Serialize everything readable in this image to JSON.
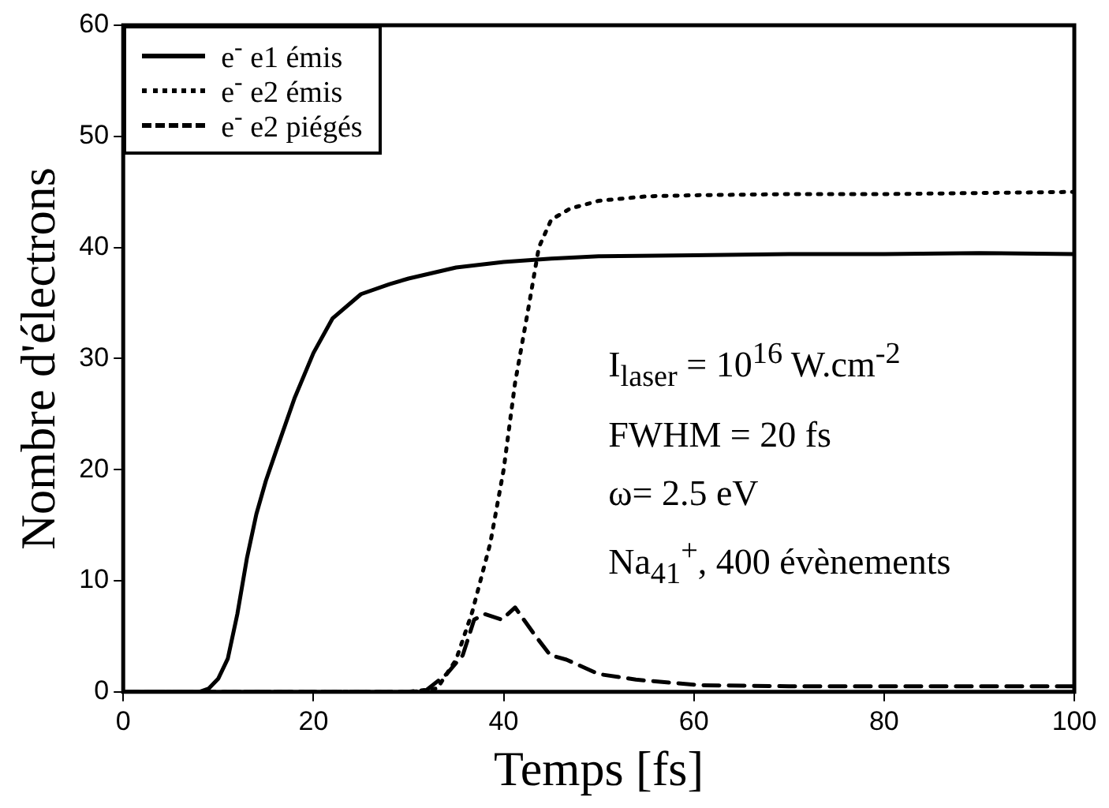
{
  "chart_data": {
    "type": "line",
    "xlabel": "Temps [fs]",
    "ylabel": "Nombre d'électrons",
    "xlim": [
      0,
      100
    ],
    "xticks": [
      0,
      20,
      40,
      60,
      80,
      100
    ],
    "ylim": [
      0,
      60
    ],
    "yticks": [
      0,
      10,
      20,
      30,
      40,
      50,
      60
    ],
    "grid": false,
    "legend": "top left",
    "marker": "none",
    "annotations": [
      "I$_{laser}$ = 10$^{16}$ W.cm$^{-2}$",
      "FWHM = 20 fs",
      "ω= 2.5 eV",
      "Na$_{41}$$^{+}$, 400 évènements"
    ],
    "series": [
      {
        "name": "e$^{-}$ e1 émis",
        "color": "#000000",
        "line_style": "solid",
        "x": [
          0,
          8,
          9,
          10,
          11,
          12,
          13,
          14,
          15,
          16,
          18,
          20,
          22,
          25,
          28,
          30,
          35,
          40,
          45,
          50,
          60,
          70,
          80,
          90,
          100
        ],
        "values": [
          0,
          0,
          0.3,
          1.2,
          3,
          7,
          12,
          16,
          19,
          21.5,
          26.4,
          30.5,
          33.6,
          35.8,
          36.7,
          37.2,
          38.2,
          38.7,
          39,
          39.2,
          39.3,
          39.4,
          39.4,
          39.5,
          39.4
        ]
      },
      {
        "name": "e$^{-}$ e2 émis",
        "color": "#000000",
        "line_style": "dotted",
        "x": [
          0,
          30,
          33,
          35,
          36.7,
          38.6,
          40,
          41.2,
          42.7,
          43.7,
          45,
          47,
          50,
          55,
          60,
          70,
          80,
          100
        ],
        "values": [
          0,
          0,
          0.3,
          2.9,
          7.2,
          13.4,
          20,
          27.8,
          35,
          40,
          42.5,
          43.5,
          44.2,
          44.6,
          44.7,
          44.8,
          44.8,
          45
        ]
      },
      {
        "name": "e$^{-}$ e2 piégés",
        "color": "#000000",
        "line_style": "dashed",
        "x": [
          0,
          30,
          31.8,
          34,
          35.7,
          36.9,
          38,
          39.8,
          41.2,
          43.2,
          44.9,
          46.6,
          50,
          53.9,
          60.7,
          70,
          80,
          100
        ],
        "values": [
          0,
          0,
          0.1,
          1.6,
          3.3,
          6.5,
          7,
          6.5,
          7.6,
          5.2,
          3.3,
          2.9,
          1.6,
          1.1,
          0.6,
          0.5,
          0.5,
          0.5
        ]
      }
    ]
  }
}
